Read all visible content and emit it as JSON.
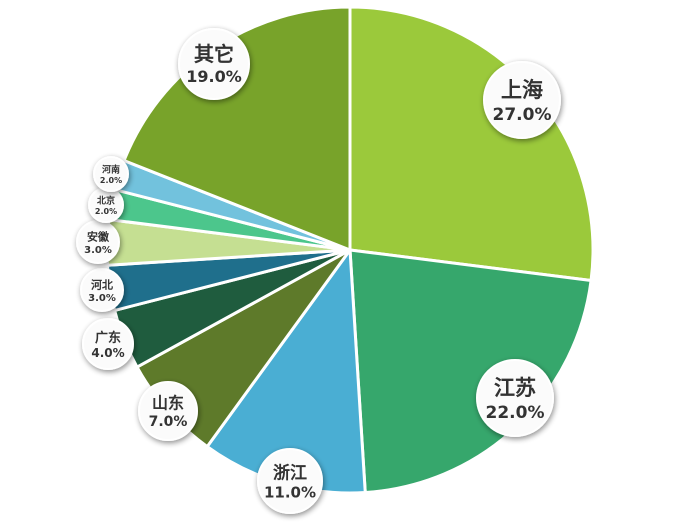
{
  "chart_data": {
    "type": "pie",
    "start_angle_deg": 0,
    "direction": "clockwise",
    "slices": [
      {
        "label": "上海",
        "value": 27.0,
        "pct_text": "27.0%",
        "color": "#9bc93b"
      },
      {
        "label": "江苏",
        "value": 22.0,
        "pct_text": "22.0%",
        "color": "#36a76c"
      },
      {
        "label": "浙江",
        "value": 11.0,
        "pct_text": "11.0%",
        "color": "#4aaed3"
      },
      {
        "label": "山东",
        "value": 7.0,
        "pct_text": "7.0%",
        "color": "#5e7a2a"
      },
      {
        "label": "广东",
        "value": 4.0,
        "pct_text": "4.0%",
        "color": "#1f5c3e"
      },
      {
        "label": "河北",
        "value": 3.0,
        "pct_text": "3.0%",
        "color": "#1f6f8c"
      },
      {
        "label": "安徽",
        "value": 3.0,
        "pct_text": "3.0%",
        "color": "#c5df92"
      },
      {
        "label": "北京",
        "value": 2.0,
        "pct_text": "2.0%",
        "color": "#4cc68c"
      },
      {
        "label": "河南",
        "value": 2.0,
        "pct_text": "2.0%",
        "color": "#72c2dd"
      },
      {
        "label": "其它",
        "value": 19.0,
        "pct_text": "19.0%",
        "color": "#78a32a"
      }
    ]
  }
}
